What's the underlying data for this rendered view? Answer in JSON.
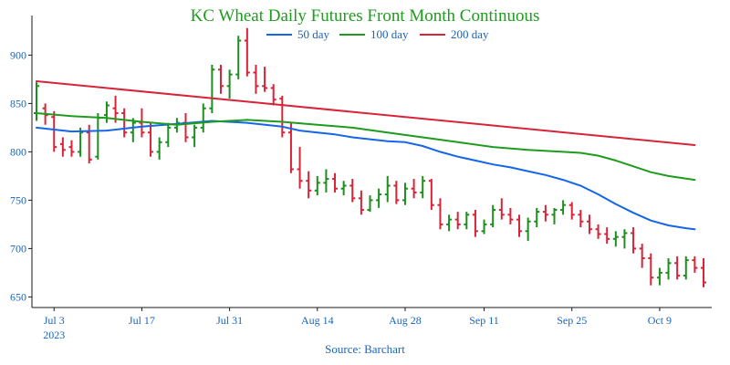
{
  "chart_data": {
    "type": "ohlc-line",
    "title": "KC Wheat Daily Futures Front Month Continuous",
    "source": "Source: Barchart",
    "ylim": [
      640,
      940
    ],
    "y_ticks": [
      650,
      700,
      750,
      800,
      850,
      900
    ],
    "x_ticks": [
      {
        "index": 2,
        "label": "Jul 3",
        "sub": "2023"
      },
      {
        "index": 12,
        "label": "Jul 17",
        "sub": ""
      },
      {
        "index": 22,
        "label": "Jul 31",
        "sub": ""
      },
      {
        "index": 32,
        "label": "Aug 14",
        "sub": ""
      },
      {
        "index": 42,
        "label": "Aug 28",
        "sub": ""
      },
      {
        "index": 51,
        "label": "Sep 11",
        "sub": ""
      },
      {
        "index": 61,
        "label": "Sep 25",
        "sub": ""
      },
      {
        "index": 71,
        "label": "Oct 9",
        "sub": ""
      }
    ],
    "dates": [
      "2023-06-28",
      "2023-06-29",
      "2023-06-30",
      "2023-07-03",
      "2023-07-05",
      "2023-07-06",
      "2023-07-07",
      "2023-07-10",
      "2023-07-11",
      "2023-07-12",
      "2023-07-13",
      "2023-07-14",
      "2023-07-17",
      "2023-07-18",
      "2023-07-19",
      "2023-07-20",
      "2023-07-21",
      "2023-07-24",
      "2023-07-25",
      "2023-07-26",
      "2023-07-27",
      "2023-07-28",
      "2023-07-31",
      "2023-08-01",
      "2023-08-02",
      "2023-08-03",
      "2023-08-04",
      "2023-08-07",
      "2023-08-08",
      "2023-08-09",
      "2023-08-10",
      "2023-08-11",
      "2023-08-14",
      "2023-08-15",
      "2023-08-16",
      "2023-08-17",
      "2023-08-18",
      "2023-08-21",
      "2023-08-22",
      "2023-08-23",
      "2023-08-24",
      "2023-08-25",
      "2023-08-28",
      "2023-08-29",
      "2023-08-30",
      "2023-08-31",
      "2023-09-01",
      "2023-09-05",
      "2023-09-06",
      "2023-09-07",
      "2023-09-08",
      "2023-09-11",
      "2023-09-12",
      "2023-09-13",
      "2023-09-14",
      "2023-09-15",
      "2023-09-18",
      "2023-09-19",
      "2023-09-20",
      "2023-09-21",
      "2023-09-22",
      "2023-09-25",
      "2023-09-26",
      "2023-09-27",
      "2023-09-28",
      "2023-09-29",
      "2023-10-02",
      "2023-10-03",
      "2023-10-04",
      "2023-10-05",
      "2023-10-06",
      "2023-10-09",
      "2023-10-10",
      "2023-10-11",
      "2023-10-12",
      "2023-10-13",
      "2023-10-16"
    ],
    "ohlc": [
      [
        840,
        872,
        832,
        868
      ],
      [
        845,
        850,
        828,
        838
      ],
      [
        836,
        842,
        800,
        805
      ],
      [
        808,
        815,
        795,
        802
      ],
      [
        805,
        812,
        795,
        800
      ],
      [
        800,
        825,
        795,
        820
      ],
      [
        820,
        828,
        788,
        792
      ],
      [
        795,
        840,
        792,
        835
      ],
      [
        838,
        852,
        830,
        848
      ],
      [
        845,
        858,
        830,
        840
      ],
      [
        840,
        845,
        815,
        820
      ],
      [
        820,
        835,
        810,
        830
      ],
      [
        830,
        845,
        815,
        820
      ],
      [
        820,
        830,
        795,
        800
      ],
      [
        800,
        815,
        792,
        810
      ],
      [
        810,
        830,
        805,
        825
      ],
      [
        825,
        835,
        820,
        830
      ],
      [
        830,
        840,
        810,
        815
      ],
      [
        815,
        828,
        805,
        825
      ],
      [
        825,
        850,
        820,
        845
      ],
      [
        845,
        890,
        840,
        885
      ],
      [
        885,
        890,
        860,
        868
      ],
      [
        868,
        885,
        855,
        880
      ],
      [
        880,
        920,
        875,
        915
      ],
      [
        915,
        928,
        878,
        882
      ],
      [
        882,
        890,
        860,
        868
      ],
      [
        868,
        888,
        862,
        866
      ],
      [
        866,
        870,
        848,
        854
      ],
      [
        855,
        858,
        815,
        820
      ],
      [
        820,
        830,
        778,
        782
      ],
      [
        782,
        805,
        762,
        770
      ],
      [
        770,
        780,
        752,
        760
      ],
      [
        760,
        775,
        755,
        768
      ],
      [
        768,
        782,
        758,
        772
      ],
      [
        772,
        778,
        758,
        762
      ],
      [
        762,
        770,
        755,
        765
      ],
      [
        765,
        772,
        748,
        752
      ],
      [
        752,
        760,
        735,
        740
      ],
      [
        740,
        755,
        738,
        750
      ],
      [
        750,
        762,
        742,
        756
      ],
      [
        756,
        775,
        748,
        765
      ],
      [
        765,
        770,
        746,
        750
      ],
      [
        750,
        768,
        745,
        762
      ],
      [
        762,
        772,
        752,
        758
      ],
      [
        758,
        775,
        752,
        770
      ],
      [
        770,
        772,
        740,
        745
      ],
      [
        745,
        752,
        720,
        725
      ],
      [
        725,
        735,
        718,
        730
      ],
      [
        730,
        738,
        720,
        725
      ],
      [
        725,
        738,
        720,
        735
      ],
      [
        735,
        740,
        712,
        718
      ],
      [
        718,
        730,
        715,
        725
      ],
      [
        725,
        745,
        722,
        740
      ],
      [
        740,
        752,
        730,
        735
      ],
      [
        735,
        742,
        725,
        730
      ],
      [
        730,
        735,
        712,
        718
      ],
      [
        718,
        732,
        708,
        728
      ],
      [
        728,
        742,
        722,
        738
      ],
      [
        738,
        745,
        728,
        735
      ],
      [
        735,
        742,
        725,
        740
      ],
      [
        740,
        750,
        735,
        745
      ],
      [
        745,
        748,
        730,
        735
      ],
      [
        735,
        740,
        722,
        728
      ],
      [
        728,
        735,
        715,
        720
      ],
      [
        720,
        725,
        710,
        715
      ],
      [
        715,
        722,
        705,
        710
      ],
      [
        710,
        718,
        702,
        712
      ],
      [
        712,
        720,
        700,
        716
      ],
      [
        716,
        722,
        695,
        700
      ],
      [
        700,
        705,
        680,
        690
      ],
      [
        690,
        695,
        662,
        670
      ],
      [
        670,
        680,
        662,
        675
      ],
      [
        675,
        690,
        668,
        685
      ],
      [
        685,
        692,
        668,
        672
      ],
      [
        672,
        692,
        668,
        688
      ],
      [
        688,
        692,
        675,
        680
      ],
      [
        680,
        690,
        660,
        665
      ]
    ],
    "series": [
      {
        "name": "50 day",
        "color": "#1565e8",
        "points": [
          [
            0,
            825
          ],
          [
            4,
            821
          ],
          [
            8,
            822
          ],
          [
            12,
            826
          ],
          [
            16,
            829
          ],
          [
            20,
            832
          ],
          [
            24,
            830
          ],
          [
            28,
            826
          ],
          [
            30,
            822
          ],
          [
            32,
            820
          ],
          [
            34,
            818
          ],
          [
            36,
            815
          ],
          [
            38,
            813
          ],
          [
            40,
            811
          ],
          [
            42,
            810
          ],
          [
            44,
            806
          ],
          [
            46,
            800
          ],
          [
            48,
            795
          ],
          [
            50,
            791
          ],
          [
            52,
            787
          ],
          [
            54,
            784
          ],
          [
            56,
            780
          ],
          [
            58,
            776
          ],
          [
            60,
            771
          ],
          [
            62,
            765
          ],
          [
            64,
            756
          ],
          [
            66,
            746
          ],
          [
            68,
            737
          ],
          [
            70,
            729
          ],
          [
            72,
            724
          ],
          [
            74,
            721
          ],
          [
            75,
            720
          ]
        ]
      },
      {
        "name": "100 day",
        "color": "#1e9c1e",
        "points": [
          [
            0,
            840
          ],
          [
            4,
            837
          ],
          [
            8,
            835
          ],
          [
            12,
            831
          ],
          [
            16,
            828
          ],
          [
            20,
            831
          ],
          [
            24,
            833
          ],
          [
            28,
            831
          ],
          [
            32,
            828
          ],
          [
            36,
            825
          ],
          [
            40,
            820
          ],
          [
            44,
            815
          ],
          [
            48,
            810
          ],
          [
            52,
            805
          ],
          [
            56,
            802
          ],
          [
            60,
            800
          ],
          [
            62,
            799
          ],
          [
            64,
            796
          ],
          [
            66,
            791
          ],
          [
            68,
            785
          ],
          [
            70,
            779
          ],
          [
            72,
            775
          ],
          [
            75,
            771
          ]
        ]
      },
      {
        "name": "200 day",
        "color": "#d82438",
        "points": [
          [
            0,
            873
          ],
          [
            75,
            807
          ]
        ]
      }
    ],
    "colors": {
      "up": "#1e8e1e",
      "down": "#d82438",
      "axis": "#1a1a1a",
      "tick_label": "#1565c0",
      "title": "#1e9c1e"
    }
  }
}
